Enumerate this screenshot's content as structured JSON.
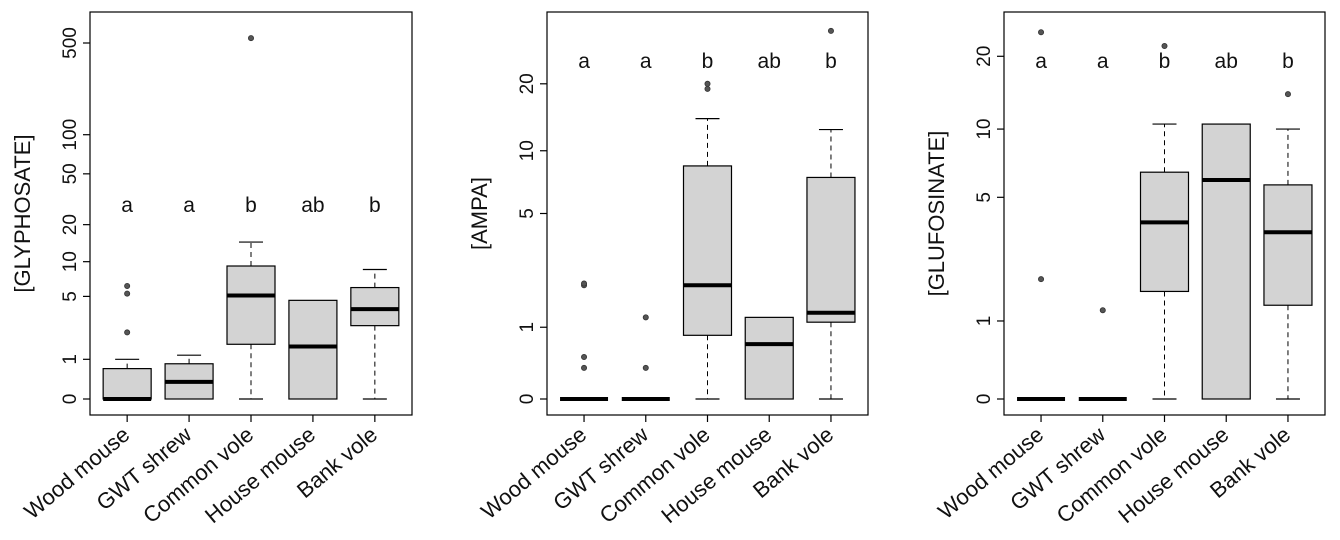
{
  "colors": {
    "box_fill": "#d3d3d3",
    "stroke": "#000000",
    "outlier": "#555555"
  },
  "chart_data": [
    {
      "type": "boxplot",
      "ylabel": "[GLYPHOSATE]",
      "yscale": "log1p",
      "ylim": [
        0,
        650
      ],
      "yticks": [
        0,
        1,
        5,
        10,
        20,
        50,
        100,
        500
      ],
      "categories": [
        "Wood mouse",
        "GWT shrew",
        "Common vole",
        "House mouse",
        "Bank vole"
      ],
      "letters": [
        "a",
        "a",
        "b",
        "ab",
        "b"
      ],
      "boxes": [
        {
          "whisker_low": 0,
          "q1": 0,
          "median": 0,
          "q3": 0.7,
          "whisker_high": 1.0,
          "outliers": [
            2.2,
            5.3,
            6.2
          ]
        },
        {
          "whisker_low": 0,
          "q1": 0,
          "median": 0.35,
          "q3": 0.85,
          "whisker_high": 1.15,
          "outliers": []
        },
        {
          "whisker_low": 0,
          "q1": 1.6,
          "median": 5.1,
          "q3": 9.2,
          "whisker_high": 14.5,
          "outliers": [
            545
          ]
        },
        {
          "whisker_low": 0,
          "q1": 0,
          "median": 1.5,
          "q3": 4.6,
          "whisker_high": 4.6,
          "outliers": []
        },
        {
          "whisker_low": 0,
          "q1": 2.6,
          "median": 3.8,
          "q3": 6.0,
          "whisker_high": 8.6,
          "outliers": []
        }
      ]
    },
    {
      "type": "boxplot",
      "ylabel": "[AMPA]",
      "yscale": "log1p",
      "ylim": [
        0,
        35
      ],
      "yticks": [
        0,
        1,
        5,
        10,
        20
      ],
      "categories": [
        "Wood mouse",
        "GWT shrew",
        "Common vole",
        "House mouse",
        "Bank vole"
      ],
      "letters": [
        "a",
        "a",
        "b",
        "ab",
        "b"
      ],
      "boxes": [
        {
          "whisker_low": 0,
          "q1": 0,
          "median": 0,
          "q3": 0,
          "whisker_high": 0,
          "outliers": [
            0.35,
            0.5,
            2.0,
            2.05
          ]
        },
        {
          "whisker_low": 0,
          "q1": 0,
          "median": 0,
          "q3": 0,
          "whisker_high": 0,
          "outliers": [
            0.35,
            1.2
          ]
        },
        {
          "whisker_low": 0,
          "q1": 0.85,
          "median": 2.0,
          "q3": 8.5,
          "whisker_high": 14.0,
          "outliers": [
            19.0,
            20.0
          ]
        },
        {
          "whisker_low": 0,
          "q1": 0,
          "median": 0.7,
          "q3": 1.2,
          "whisker_high": 1.2,
          "outliers": []
        },
        {
          "whisker_low": 0,
          "q1": 1.1,
          "median": 1.3,
          "q3": 7.5,
          "whisker_high": 12.5,
          "outliers": [
            34
          ]
        }
      ]
    },
    {
      "type": "boxplot",
      "ylabel": "[GLUFOSINATE]",
      "yscale": "log1p",
      "ylim": [
        0,
        26
      ],
      "yticks": [
        0,
        1,
        5,
        10,
        20
      ],
      "categories": [
        "Wood mouse",
        "GWT shrew",
        "Common vole",
        "House mouse",
        "Bank vole"
      ],
      "letters": [
        "a",
        "a",
        "b",
        "ab",
        "b"
      ],
      "boxes": [
        {
          "whisker_low": 0,
          "q1": 0,
          "median": 0,
          "q3": 0,
          "whisker_high": 0,
          "outliers": [
            1.9,
            25
          ]
        },
        {
          "whisker_low": 0,
          "q1": 0,
          "median": 0,
          "q3": 0,
          "whisker_high": 0,
          "outliers": [
            1.2
          ]
        },
        {
          "whisker_low": 0,
          "q1": 1.6,
          "median": 3.8,
          "q3": 6.5,
          "whisker_high": 10.5,
          "outliers": [
            22
          ]
        },
        {
          "whisker_low": 0,
          "q1": 0,
          "median": 6.0,
          "q3": 10.5,
          "whisker_high": 10.5,
          "outliers": []
        },
        {
          "whisker_low": 0,
          "q1": 1.3,
          "median": 3.4,
          "q3": 5.7,
          "whisker_high": 10.0,
          "outliers": [
            14
          ]
        }
      ]
    }
  ]
}
